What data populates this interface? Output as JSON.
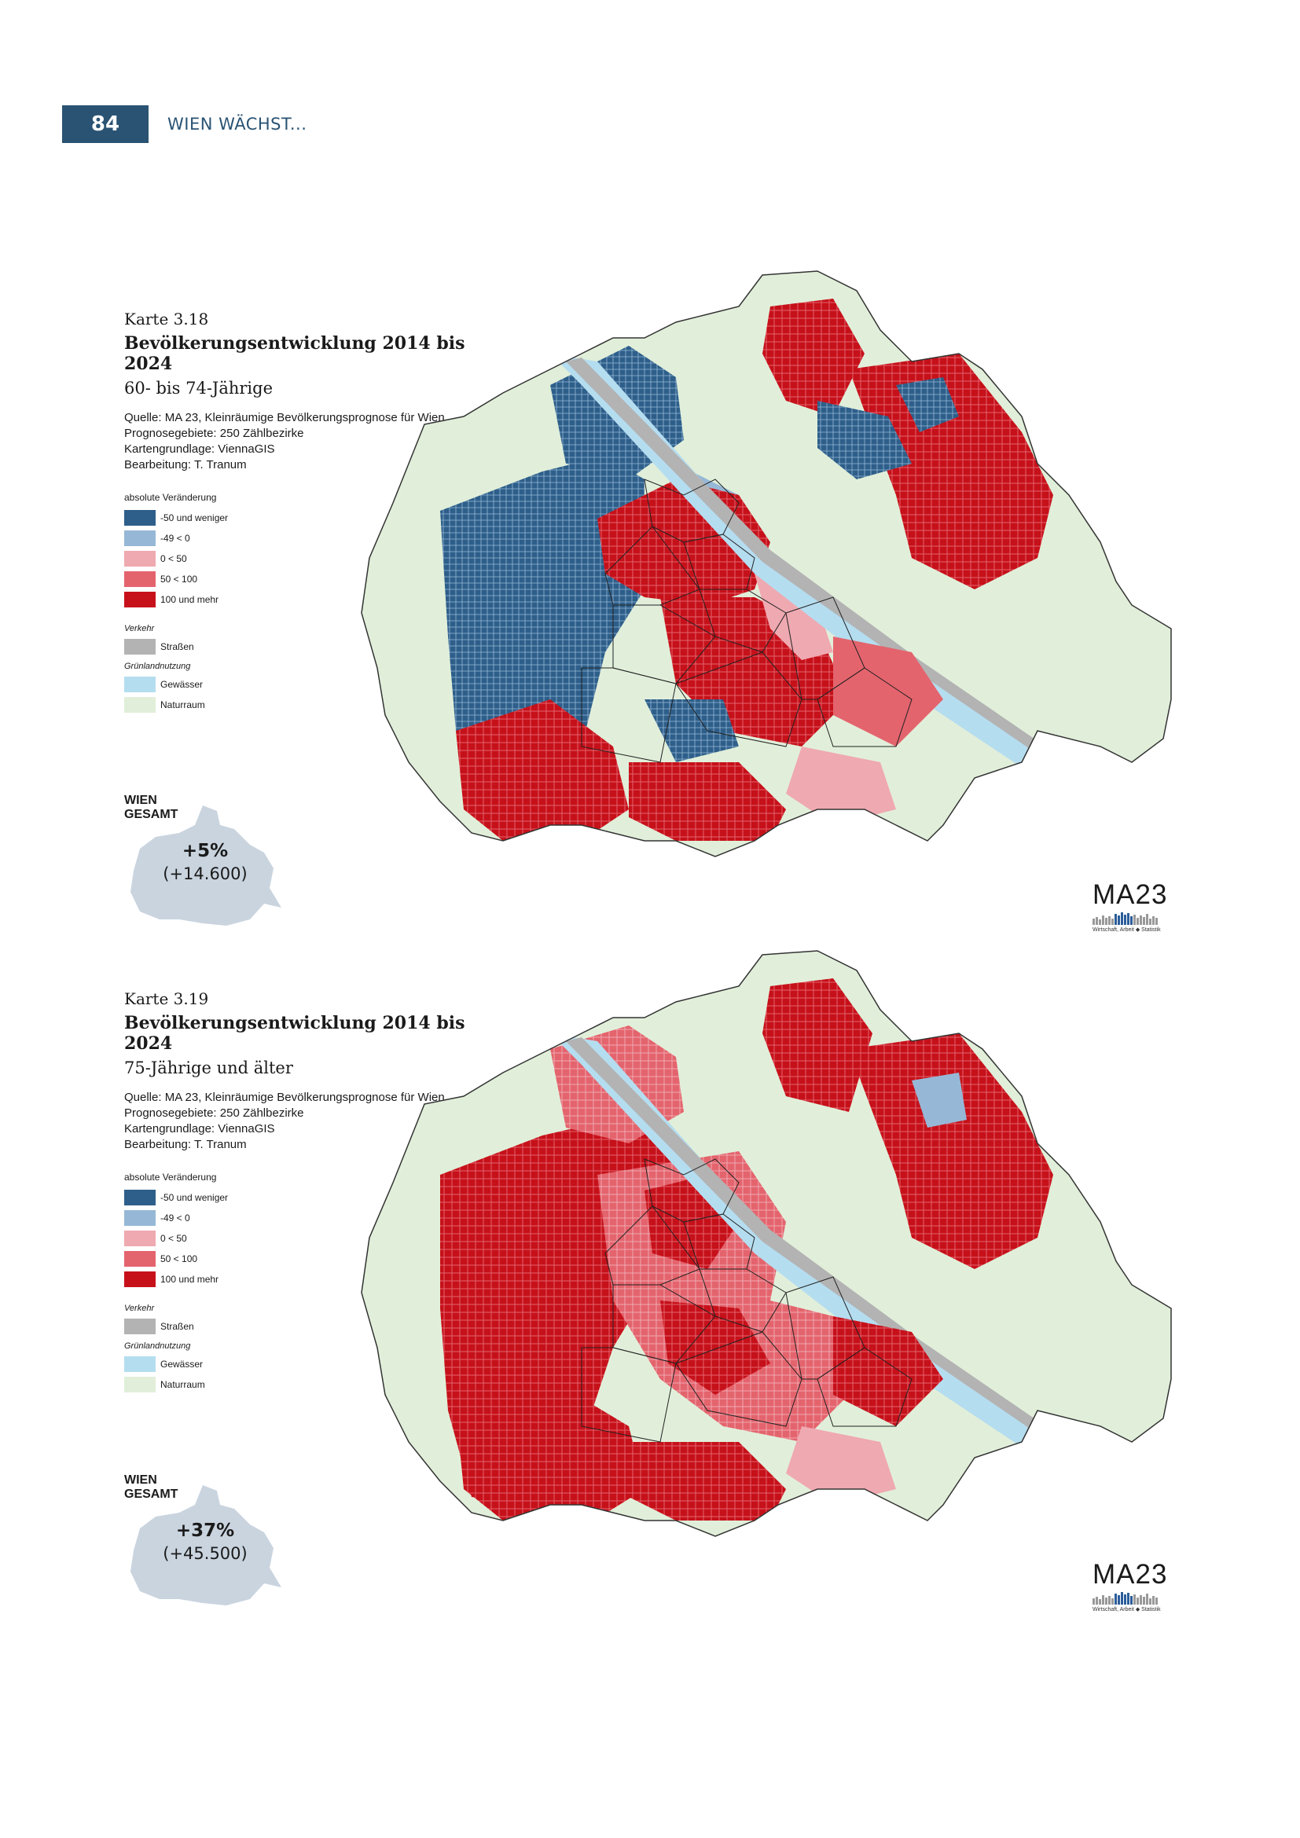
{
  "header": {
    "page_number": "84",
    "running_title": "WIEN WÄCHST..."
  },
  "legend_labels": {
    "heading": "absolute Veränderung",
    "classes": [
      {
        "label": "-50 und weniger",
        "color": "#2e5f8a"
      },
      {
        "label": "-49 < 0",
        "color": "#96b8d6"
      },
      {
        "label": "0 < 50",
        "color": "#efa9b1"
      },
      {
        "label": "50 < 100",
        "color": "#e4646d"
      },
      {
        "label": "100 und mehr",
        "color": "#c6111a"
      }
    ],
    "verkehr": "Verkehr",
    "strassen": "Straßen",
    "strassen_color": "#b3b3b3",
    "gruenland": "Grünlandnutzung",
    "gewaesser": "Gewässer",
    "gewaesser_color": "#b5ddf0",
    "naturraum": "Naturraum",
    "naturraum_color": "#e1efda"
  },
  "maps": [
    {
      "number": "Karte 3.18",
      "title": "Bevölkerungsentwicklung 2014 bis 2024",
      "subtitle": "60- bis 74-Jährige",
      "source_lines": [
        "Quelle: MA 23, Kleinräumige Bevölkerungsprognose für Wien",
        "Prognosegebiete: 250 Zählbezirke",
        "Kartengrundlage: ViennaGIS",
        "Bearbeitung: T. Tranum"
      ],
      "total_label_1": "WIEN",
      "total_label_2": "GESAMT",
      "total_pct": "+5%",
      "total_abs": "(+14.600)"
    },
    {
      "number": "Karte 3.19",
      "title": "Bevölkerungsentwicklung 2014 bis 2024",
      "subtitle": "75-Jährige und älter",
      "source_lines": [
        "Quelle: MA 23, Kleinräumige Bevölkerungsprognose für Wien",
        "Prognosegebiete: 250 Zählbezirke",
        "Kartengrundlage: ViennaGIS",
        "Bearbeitung: T. Tranum"
      ],
      "total_label_1": "WIEN",
      "total_label_2": "GESAMT",
      "total_pct": "+37%",
      "total_abs": "(+45.500)"
    }
  ],
  "logo": {
    "name": "MA23",
    "tagline": "Wirtschaft, Arbeit ◆ Statistik"
  }
}
